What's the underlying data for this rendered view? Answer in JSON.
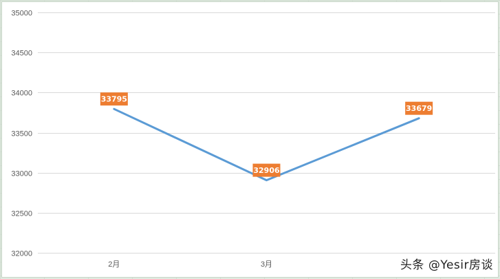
{
  "chart_data": {
    "type": "line",
    "title": "",
    "xlabel": "",
    "ylabel": "",
    "categories": [
      "2月",
      "3月",
      ""
    ],
    "series": [
      {
        "values": [
          33795,
          32906,
          33679
        ],
        "data_labels": [
          "33795",
          "32906",
          "33679"
        ],
        "color": "#5b9bd5"
      }
    ],
    "ylim": [
      32000,
      35000
    ],
    "yticks": [
      32000,
      32500,
      33000,
      33500,
      34000,
      34500,
      35000
    ],
    "ytick_labels": [
      "32000",
      "32500",
      "33000",
      "33500",
      "34000",
      "34500",
      "35000"
    ],
    "grid": true,
    "legend": "none",
    "data_label_color": "#ed7d31"
  },
  "watermark": {
    "text": "头条 @Yesir房谈"
  }
}
